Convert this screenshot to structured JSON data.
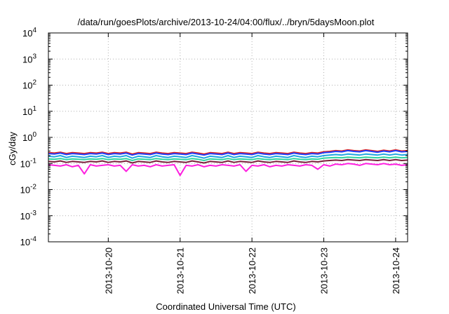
{
  "chart_data": {
    "type": "line",
    "title": "/data/run/goesPlots/archive/2013-10-24/04:00/flux/../bryn/5daysMoon.plot",
    "xlabel": "Coordinated Universal Time (UTC)",
    "ylabel": "cGy/day",
    "y_scale": "log",
    "ylim": [
      0.0001,
      10000
    ],
    "xlim": [
      "2013-10-19T04:00",
      "2013-10-24T04:00"
    ],
    "y_ticks": [
      {
        "value": 0.0001,
        "base": "10",
        "exp": "-4"
      },
      {
        "value": 0.001,
        "base": "10",
        "exp": "-3"
      },
      {
        "value": 0.01,
        "base": "10",
        "exp": "-2"
      },
      {
        "value": 0.1,
        "base": "10",
        "exp": "-1"
      },
      {
        "value": 1,
        "base": "10",
        "exp": "0"
      },
      {
        "value": 10,
        "base": "10",
        "exp": "1"
      },
      {
        "value": 100,
        "base": "10",
        "exp": "2"
      },
      {
        "value": 1000,
        "base": "10",
        "exp": "3"
      },
      {
        "value": 10000,
        "base": "10",
        "exp": "4"
      }
    ],
    "x_ticks": [
      {
        "value": "2013-10-20T00:00",
        "label": "2013-10-20"
      },
      {
        "value": "2013-10-21T00:00",
        "label": "2013-10-21"
      },
      {
        "value": "2013-10-22T00:00",
        "label": "2013-10-22"
      },
      {
        "value": "2013-10-23T00:00",
        "label": "2013-10-23"
      },
      {
        "value": "2013-10-24T00:00",
        "label": "2013-10-24"
      }
    ],
    "grid": true,
    "legend": "none",
    "x": [
      "2013-10-19T04:00",
      "2013-10-19T06:00",
      "2013-10-19T08:00",
      "2013-10-19T10:00",
      "2013-10-19T12:00",
      "2013-10-19T14:00",
      "2013-10-19T16:00",
      "2013-10-19T18:00",
      "2013-10-19T20:00",
      "2013-10-19T22:00",
      "2013-10-20T00:00",
      "2013-10-20T02:00",
      "2013-10-20T04:00",
      "2013-10-20T06:00",
      "2013-10-20T08:00",
      "2013-10-20T10:00",
      "2013-10-20T12:00",
      "2013-10-20T14:00",
      "2013-10-20T16:00",
      "2013-10-20T18:00",
      "2013-10-20T20:00",
      "2013-10-20T22:00",
      "2013-10-21T00:00",
      "2013-10-21T02:00",
      "2013-10-21T04:00",
      "2013-10-21T06:00",
      "2013-10-21T08:00",
      "2013-10-21T10:00",
      "2013-10-21T12:00",
      "2013-10-21T14:00",
      "2013-10-21T16:00",
      "2013-10-21T18:00",
      "2013-10-21T20:00",
      "2013-10-21T22:00",
      "2013-10-22T00:00",
      "2013-10-22T02:00",
      "2013-10-22T04:00",
      "2013-10-22T06:00",
      "2013-10-22T08:00",
      "2013-10-22T10:00",
      "2013-10-22T12:00",
      "2013-10-22T14:00",
      "2013-10-22T16:00",
      "2013-10-22T18:00",
      "2013-10-22T20:00",
      "2013-10-22T22:00",
      "2013-10-23T00:00",
      "2013-10-23T02:00",
      "2013-10-23T04:00",
      "2013-10-23T06:00",
      "2013-10-23T08:00",
      "2013-10-23T10:00",
      "2013-10-23T12:00",
      "2013-10-23T14:00",
      "2013-10-23T16:00",
      "2013-10-23T18:00",
      "2013-10-23T20:00",
      "2013-10-23T22:00",
      "2013-10-24T00:00",
      "2013-10-24T02:00",
      "2013-10-24T04:00"
    ],
    "series": [
      {
        "color": "#e3201b",
        "values": [
          0.26,
          0.25,
          0.27,
          0.24,
          0.26,
          0.25,
          0.24,
          0.26,
          0.25,
          0.27,
          0.24,
          0.26,
          0.25,
          0.27,
          0.23,
          0.26,
          0.25,
          0.24,
          0.27,
          0.25,
          0.24,
          0.26,
          0.25,
          0.24,
          0.27,
          0.25,
          0.23,
          0.26,
          0.25,
          0.24,
          0.27,
          0.24,
          0.26,
          0.25,
          0.24,
          0.27,
          0.25,
          0.24,
          0.26,
          0.25,
          0.24,
          0.27,
          0.25,
          0.24,
          0.26,
          0.25,
          0.28,
          0.29,
          0.31,
          0.3,
          0.33,
          0.31,
          0.3,
          0.33,
          0.31,
          0.29,
          0.32,
          0.3,
          0.33,
          0.3,
          0.31
        ]
      },
      {
        "color": "#1f3fff",
        "values": [
          0.24,
          0.23,
          0.25,
          0.22,
          0.24,
          0.23,
          0.22,
          0.24,
          0.23,
          0.25,
          0.22,
          0.24,
          0.23,
          0.25,
          0.21,
          0.24,
          0.23,
          0.22,
          0.25,
          0.23,
          0.22,
          0.24,
          0.23,
          0.22,
          0.25,
          0.23,
          0.21,
          0.24,
          0.23,
          0.22,
          0.25,
          0.22,
          0.24,
          0.23,
          0.22,
          0.25,
          0.23,
          0.22,
          0.24,
          0.23,
          0.22,
          0.25,
          0.23,
          0.22,
          0.24,
          0.23,
          0.26,
          0.27,
          0.29,
          0.28,
          0.31,
          0.29,
          0.28,
          0.31,
          0.29,
          0.27,
          0.3,
          0.28,
          0.31,
          0.28,
          0.29
        ]
      },
      {
        "color": "#1ea7e0",
        "values": [
          0.19,
          0.18,
          0.2,
          0.17,
          0.19,
          0.18,
          0.17,
          0.19,
          0.18,
          0.2,
          0.17,
          0.19,
          0.18,
          0.2,
          0.16,
          0.19,
          0.18,
          0.17,
          0.2,
          0.18,
          0.17,
          0.19,
          0.18,
          0.17,
          0.2,
          0.18,
          0.16,
          0.19,
          0.18,
          0.17,
          0.2,
          0.17,
          0.19,
          0.18,
          0.17,
          0.2,
          0.18,
          0.17,
          0.19,
          0.18,
          0.17,
          0.2,
          0.18,
          0.17,
          0.19,
          0.18,
          0.2,
          0.21,
          0.22,
          0.21,
          0.23,
          0.22,
          0.21,
          0.23,
          0.22,
          0.21,
          0.23,
          0.21,
          0.23,
          0.21,
          0.22
        ]
      },
      {
        "color": "#2fd4a0",
        "values": [
          0.15,
          0.145,
          0.155,
          0.14,
          0.15,
          0.145,
          0.14,
          0.15,
          0.145,
          0.155,
          0.14,
          0.15,
          0.145,
          0.155,
          0.13,
          0.15,
          0.145,
          0.14,
          0.155,
          0.145,
          0.14,
          0.15,
          0.145,
          0.14,
          0.155,
          0.145,
          0.13,
          0.15,
          0.145,
          0.14,
          0.155,
          0.14,
          0.15,
          0.145,
          0.14,
          0.155,
          0.145,
          0.14,
          0.15,
          0.145,
          0.14,
          0.155,
          0.145,
          0.14,
          0.15,
          0.145,
          0.16,
          0.165,
          0.17,
          0.165,
          0.175,
          0.17,
          0.165,
          0.175,
          0.17,
          0.165,
          0.175,
          0.165,
          0.175,
          0.165,
          0.17
        ]
      },
      {
        "color": "#7a1f3a",
        "values": [
          0.12,
          0.115,
          0.125,
          0.11,
          0.12,
          0.115,
          0.11,
          0.12,
          0.115,
          0.125,
          0.11,
          0.12,
          0.115,
          0.125,
          0.105,
          0.12,
          0.115,
          0.11,
          0.125,
          0.115,
          0.11,
          0.12,
          0.115,
          0.11,
          0.125,
          0.115,
          0.105,
          0.12,
          0.115,
          0.11,
          0.125,
          0.11,
          0.12,
          0.115,
          0.11,
          0.125,
          0.115,
          0.11,
          0.12,
          0.115,
          0.11,
          0.125,
          0.115,
          0.11,
          0.12,
          0.115,
          0.125,
          0.13,
          0.135,
          0.13,
          0.14,
          0.135,
          0.13,
          0.14,
          0.135,
          0.13,
          0.14,
          0.13,
          0.14,
          0.13,
          0.135
        ]
      },
      {
        "color": "#ff1fe0",
        "values": [
          0.09,
          0.085,
          0.08,
          0.09,
          0.075,
          0.085,
          0.04,
          0.09,
          0.08,
          0.085,
          0.09,
          0.08,
          0.085,
          0.05,
          0.09,
          0.08,
          0.085,
          0.075,
          0.09,
          0.08,
          0.085,
          0.09,
          0.035,
          0.085,
          0.08,
          0.09,
          0.075,
          0.085,
          0.08,
          0.09,
          0.085,
          0.08,
          0.09,
          0.05,
          0.085,
          0.08,
          0.09,
          0.075,
          0.085,
          0.08,
          0.09,
          0.085,
          0.08,
          0.09,
          0.085,
          0.06,
          0.09,
          0.08,
          0.095,
          0.09,
          0.1,
          0.095,
          0.085,
          0.1,
          0.095,
          0.09,
          0.1,
          0.09,
          0.095,
          0.085,
          0.09
        ]
      }
    ]
  }
}
